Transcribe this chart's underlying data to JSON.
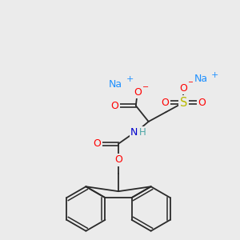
{
  "bg_color": "#ebebeb",
  "fig_width": 3.0,
  "fig_height": 3.0,
  "dpi": 100,
  "colors": {
    "C": "#2a2a2a",
    "O": "#ff0000",
    "N": "#0000cc",
    "S": "#b8b800",
    "Na": "#1e90ff",
    "H": "#4da6a6",
    "bond": "#2a2a2a"
  }
}
